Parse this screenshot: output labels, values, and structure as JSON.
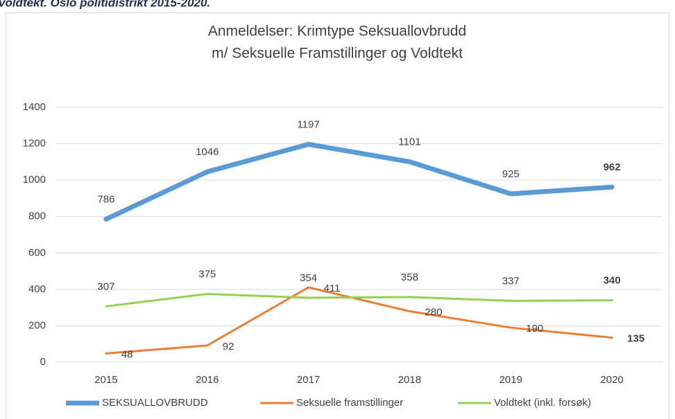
{
  "caption": "voldtekt. Oslo politidistrikt 2015-2020.",
  "chart_data": {
    "type": "line",
    "title": [
      "Anmeldelser: Krimtype Seksuallovbrudd",
      "m/ Seksuelle Framstillinger og Voldtekt"
    ],
    "categories": [
      "2015",
      "2016",
      "2017",
      "2018",
      "2019",
      "2020"
    ],
    "series": [
      {
        "name": "SEKSUALLOVBRUDD",
        "color": "#5b9bd5",
        "values": [
          786,
          1046,
          1197,
          1101,
          925,
          962
        ]
      },
      {
        "name": "Seksuelle framstillinger",
        "color": "#ed7d31",
        "values": [
          48,
          92,
          411,
          280,
          190,
          135
        ]
      },
      {
        "name": "Voldtekt (inkl. forsøk)",
        "color": "#92d050",
        "values": [
          307,
          375,
          354,
          358,
          337,
          340
        ]
      }
    ],
    "ylim": [
      0,
      1400
    ],
    "yticks": [
      0,
      200,
      400,
      600,
      800,
      1000,
      1200,
      1400
    ],
    "grid": true,
    "legend": "bottom"
  }
}
